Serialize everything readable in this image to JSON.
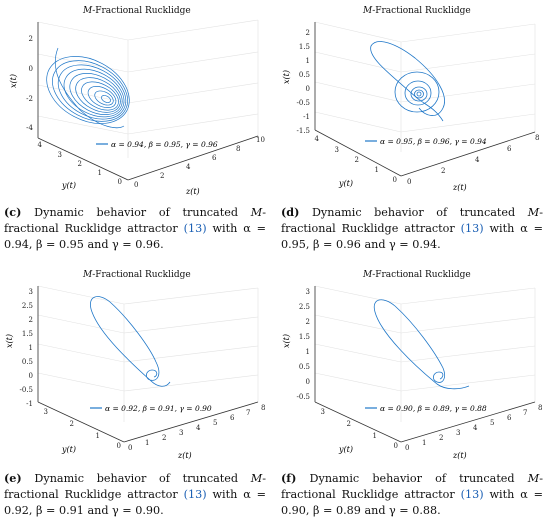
{
  "panels": [
    {
      "id": "c",
      "title_prefix": "M",
      "title_rest": "-Fractional Rucklidge",
      "legend": "α = 0.94, β = 0.95, γ = 0.96",
      "xaxis_label": "z(t)",
      "yaxis_label": "y(t)",
      "zaxis_label": "x(t)",
      "z_ticks": [
        "2",
        "0",
        "-2",
        "-4"
      ],
      "y_ticks": [
        "4",
        "3",
        "2",
        "1",
        "0"
      ],
      "x_ticks": [
        "0",
        "2",
        "4",
        "6",
        "8",
        "10"
      ],
      "caption": {
        "label": "(c)",
        "text_a": " Dynamic behavior of truncated ",
        "italic_M": "M",
        "text_b": "-fractional Rucklidge attractor ",
        "ref": "(13)",
        "text_c": " with α = 0.94, β = 0.95 and γ = 0.96."
      }
    },
    {
      "id": "d",
      "title_prefix": "M",
      "title_rest": "-Fractional Rucklidge",
      "legend": "α = 0.95, β = 0.96, γ = 0.94",
      "xaxis_label": "z(t)",
      "yaxis_label": "y(t)",
      "zaxis_label": "x(t)",
      "z_ticks": [
        "2",
        "1.5",
        "1",
        "0.5",
        "0",
        "-0.5",
        "-1",
        "-1.5"
      ],
      "y_ticks": [
        "4",
        "3",
        "2",
        "1",
        "0"
      ],
      "x_ticks": [
        "0",
        "2",
        "4",
        "6",
        "8"
      ],
      "caption": {
        "label": "(d)",
        "text_a": " Dynamic behavior of truncated ",
        "italic_M": "M",
        "text_b": "-fractional Rucklidge attractor ",
        "ref": "(13)",
        "text_c": " with α = 0.95, β = 0.96 and γ = 0.94."
      }
    },
    {
      "id": "e",
      "title_prefix": "M",
      "title_rest": "-Fractional Rucklidge",
      "legend": "α = 0.92, β = 0.91, γ = 0.90",
      "xaxis_label": "z(t)",
      "yaxis_label": "y(t)",
      "zaxis_label": "x(t)",
      "z_ticks": [
        "3",
        "2.5",
        "2",
        "1.5",
        "1",
        "0.5",
        "0",
        "-0.5",
        "-1"
      ],
      "y_ticks": [
        "3",
        "2",
        "1",
        "0"
      ],
      "x_ticks": [
        "0",
        "1",
        "2",
        "3",
        "4",
        "5",
        "6",
        "7",
        "8"
      ],
      "caption": {
        "label": "(e)",
        "text_a": " Dynamic behavior of truncated ",
        "italic_M": "M",
        "text_b": "-fractional Rucklidge attractor ",
        "ref": "(13)",
        "text_c": " with α = 0.92, β = 0.91 and γ = 0.90."
      }
    },
    {
      "id": "f",
      "title_prefix": "M",
      "title_rest": "-Fractional Rucklidge",
      "legend": "α = 0.90, β = 0.89, γ = 0.88",
      "xaxis_label": "z(t)",
      "yaxis_label": "y(t)",
      "zaxis_label": "x(t)",
      "z_ticks": [
        "3",
        "2.5",
        "2",
        "1.5",
        "1",
        "0.5",
        "0",
        "-0.5"
      ],
      "y_ticks": [
        "3",
        "2",
        "1",
        "0"
      ],
      "x_ticks": [
        "0",
        "1",
        "2",
        "3",
        "4",
        "5",
        "6",
        "7",
        "8"
      ],
      "caption": {
        "label": "(f)",
        "text_a": " Dynamic behavior of truncated ",
        "italic_M": "M",
        "text_b": "-fractional Rucklidge attractor ",
        "ref": "(13)",
        "text_c": " with α = 0.90, β = 0.89 and γ = 0.88."
      }
    }
  ],
  "colors": {
    "curve": "#1f77c8",
    "axis": "#333333",
    "grid": "#e2e2e2",
    "ref": "#1a5fb4"
  }
}
